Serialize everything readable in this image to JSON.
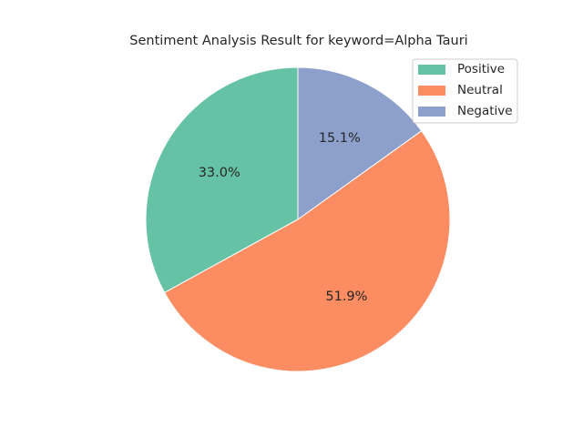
{
  "chart_data": {
    "type": "pie",
    "title": "Sentiment Analysis Result for keyword=Alpha Tauri",
    "categories": [
      "Positive",
      "Neutral",
      "Negative"
    ],
    "values": [
      33.0,
      51.9,
      15.1
    ],
    "labels": [
      "33.0%",
      "51.9%",
      "15.1%"
    ],
    "colors": [
      "#66c2a5",
      "#fc8d62",
      "#8da0cb"
    ],
    "start_angle_deg": 90,
    "direction": "counterclockwise",
    "legend_position": "upper right"
  }
}
